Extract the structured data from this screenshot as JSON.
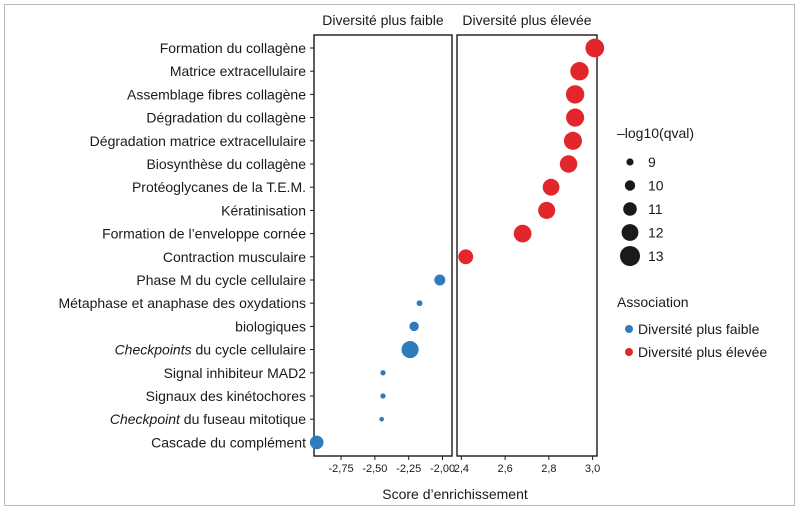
{
  "chart_data": {
    "type": "scatter",
    "panels": [
      {
        "title": "Diversité plus faible",
        "xlim": [
          -2.95,
          -1.93
        ],
        "ticks": [
          -2.75,
          -2.5,
          -2.25,
          -2.0
        ],
        "tick_labels": [
          "-2,75",
          "-2,50",
          "-2,25",
          "-2,00"
        ]
      },
      {
        "title": "Diversité plus élevée",
        "xlim": [
          2.38,
          3.02
        ],
        "ticks": [
          2.4,
          2.6,
          2.8,
          3.0
        ],
        "tick_labels": [
          "2,4",
          "2,6",
          "2,8",
          "3,0"
        ]
      }
    ],
    "xlabel": "Score d’enrichissement",
    "categories": [
      {
        "label": "Formation du collagène",
        "italic": ""
      },
      {
        "label": "Matrice extracellulaire",
        "italic": ""
      },
      {
        "label": "Assemblage fibres collagène",
        "italic": ""
      },
      {
        "label": "Dégradation du collagène",
        "italic": ""
      },
      {
        "label": "Dégradation matrice extracellulaire",
        "italic": ""
      },
      {
        "label": "Biosynthèse du collagène",
        "italic": ""
      },
      {
        "label": "Protéoglycanes de la T.E.M.",
        "italic": ""
      },
      {
        "label": "Kératinisation",
        "italic": ""
      },
      {
        "label": "Formation de l’enveloppe cornée",
        "italic": ""
      },
      {
        "label": "Contraction musculaire",
        "italic": ""
      },
      {
        "label": "Phase M du cycle cellulaire",
        "italic": ""
      },
      {
        "label": "Métaphase et anaphase des oxydations",
        "italic": ""
      },
      {
        "label": "biologiques",
        "italic": ""
      },
      {
        "label": " du cycle cellulaire",
        "italic": "Checkpoints"
      },
      {
        "label": "Signal inhibiteur MAD2",
        "italic": ""
      },
      {
        "label": "Signaux des kinétochores",
        "italic": ""
      },
      {
        "label": " du fuseau mitotique",
        "italic": "Checkpoint"
      },
      {
        "label": "Cascade du complément",
        "italic": ""
      }
    ],
    "points": [
      {
        "row": 0,
        "x": 3.01,
        "size": 12.6,
        "group": "high"
      },
      {
        "row": 1,
        "x": 2.94,
        "size": 12.5,
        "group": "high"
      },
      {
        "row": 2,
        "x": 2.92,
        "size": 12.5,
        "group": "high"
      },
      {
        "row": 3,
        "x": 2.92,
        "size": 12.4,
        "group": "high"
      },
      {
        "row": 4,
        "x": 2.91,
        "size": 12.4,
        "group": "high"
      },
      {
        "row": 5,
        "x": 2.89,
        "size": 12.2,
        "group": "high"
      },
      {
        "row": 6,
        "x": 2.81,
        "size": 12.0,
        "group": "high"
      },
      {
        "row": 7,
        "x": 2.79,
        "size": 12.1,
        "group": "high"
      },
      {
        "row": 8,
        "x": 2.68,
        "size": 12.3,
        "group": "high"
      },
      {
        "row": 9,
        "x": 2.42,
        "size": 11.4,
        "group": "high"
      },
      {
        "row": 10,
        "x": -2.02,
        "size": 10.2,
        "group": "low"
      },
      {
        "row": 11,
        "x": -2.17,
        "size": 8.6,
        "group": "low"
      },
      {
        "row": 12,
        "x": -2.21,
        "size": 9.7,
        "group": "low"
      },
      {
        "row": 13,
        "x": -2.24,
        "size": 12.1,
        "group": "low"
      },
      {
        "row": 14,
        "x": -2.44,
        "size": 8.4,
        "group": "low"
      },
      {
        "row": 15,
        "x": -2.44,
        "size": 8.4,
        "group": "low"
      },
      {
        "row": 16,
        "x": -2.45,
        "size": 8.2,
        "group": "low"
      },
      {
        "row": 17,
        "x": -2.93,
        "size": 11.0,
        "group": "low"
      }
    ],
    "size_legend": {
      "title": "–log10(qval)",
      "values": [
        9,
        10,
        11,
        12,
        13
      ],
      "labels": [
        "9",
        "10",
        "11",
        "12",
        "13"
      ]
    },
    "color_legend": {
      "title": "Association",
      "items": [
        {
          "key": "low",
          "label": "Diversité plus faible",
          "color": "#2f7bbd"
        },
        {
          "key": "high",
          "label": "Diversité plus élevée",
          "color": "#e3262b"
        }
      ]
    },
    "colors": {
      "low": "#2f7bbd",
      "high": "#e3262b",
      "legend_dot": "#1a1a1a"
    }
  }
}
